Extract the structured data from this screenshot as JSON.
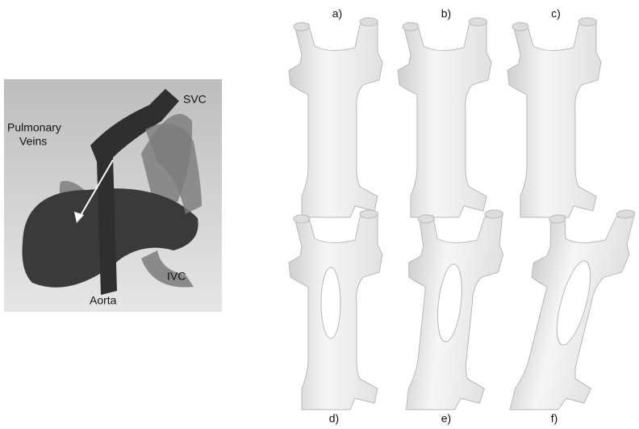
{
  "left_panel": {
    "svc": "SVC",
    "pulmonary_veins": [
      "Pulmonary",
      "Veins"
    ],
    "ivc": "IVC",
    "aorta": "Aorta"
  },
  "panels": [
    {
      "label": "a)"
    },
    {
      "label": "b)"
    },
    {
      "label": "c)"
    },
    {
      "label": "d)"
    },
    {
      "label": "e)"
    },
    {
      "label": "f)"
    }
  ]
}
